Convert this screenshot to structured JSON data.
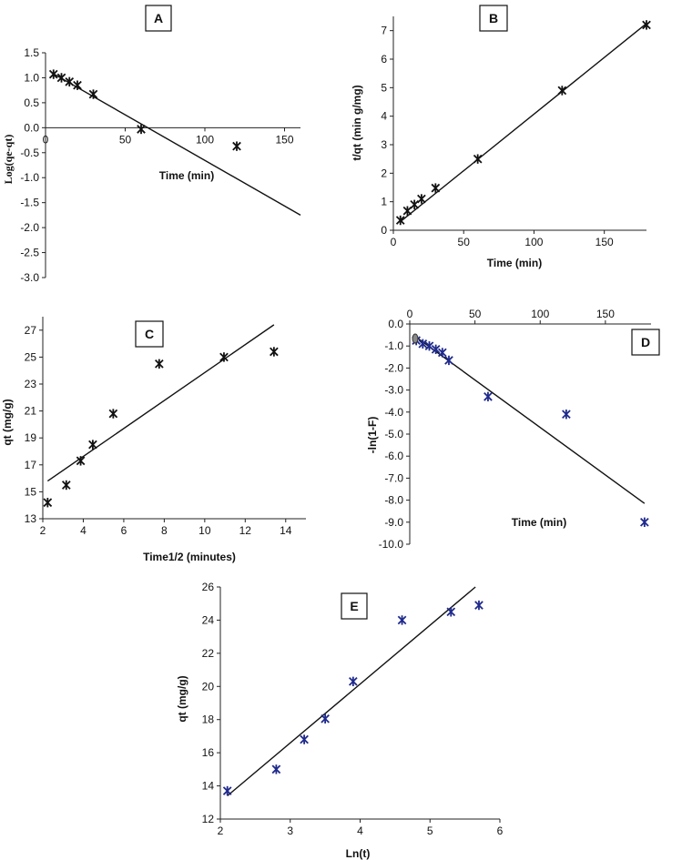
{
  "chart_data": [
    {
      "panel": "A",
      "type": "scatter",
      "xlabel": "Time (min)",
      "ylabel": "Log(qe-qt)",
      "xlim": [
        0,
        160
      ],
      "ylim": [
        -3.0,
        1.5
      ],
      "xticks": [
        "0",
        "50",
        "100",
        "150"
      ],
      "yticks": [
        "1.5",
        "1.0",
        "0.5",
        "0.0",
        "-0.5",
        "-1.0",
        "-1.5",
        "-2.0",
        "-2.5",
        "-3.0"
      ],
      "points": [
        [
          5,
          1.07
        ],
        [
          10,
          1.0
        ],
        [
          15,
          0.92
        ],
        [
          20,
          0.85
        ],
        [
          30,
          0.67
        ],
        [
          60,
          -0.03
        ],
        [
          120,
          -0.37
        ]
      ],
      "fit_line": [
        [
          5,
          1.08
        ],
        [
          160,
          -1.75
        ]
      ],
      "marker_color": "#111111"
    },
    {
      "panel": "B",
      "type": "scatter",
      "xlabel": "Time (min)",
      "ylabel": "t/qt (min g/mg)",
      "xlim": [
        0,
        180
      ],
      "ylim": [
        0,
        7.5
      ],
      "xticks": [
        "0",
        "50",
        "100",
        "150"
      ],
      "yticks": [
        "0",
        "1",
        "2",
        "3",
        "4",
        "5",
        "6",
        "7"
      ],
      "points": [
        [
          5,
          0.35
        ],
        [
          10,
          0.68
        ],
        [
          15,
          0.9
        ],
        [
          20,
          1.1
        ],
        [
          30,
          1.48
        ],
        [
          60,
          2.5
        ],
        [
          120,
          4.9
        ],
        [
          180,
          7.2
        ]
      ],
      "fit_line": [
        [
          5,
          0.3
        ],
        [
          180,
          7.25
        ]
      ],
      "marker_color": "#111111"
    },
    {
      "panel": "C",
      "type": "scatter",
      "xlabel": "Time1/2 (minutes)",
      "ylabel": "qt (mg/g)",
      "xlim": [
        2,
        15
      ],
      "ylim": [
        13,
        28
      ],
      "xticks": [
        "2",
        "4",
        "6",
        "8",
        "10",
        "12",
        "14"
      ],
      "yticks": [
        "13",
        "15",
        "17",
        "19",
        "21",
        "23",
        "25",
        "27"
      ],
      "points": [
        [
          2.24,
          14.2
        ],
        [
          3.16,
          15.5
        ],
        [
          3.87,
          17.3
        ],
        [
          4.47,
          18.5
        ],
        [
          5.48,
          20.8
        ],
        [
          7.75,
          24.5
        ],
        [
          10.95,
          25.0
        ],
        [
          13.42,
          25.4
        ]
      ],
      "fit_line": [
        [
          2.24,
          15.8
        ],
        [
          13.42,
          27.4
        ]
      ],
      "marker_color": "#111111"
    },
    {
      "panel": "D",
      "type": "scatter",
      "xlabel": "Time (min)",
      "ylabel": "-ln(1-F)",
      "xlim": [
        0,
        185
      ],
      "ylim": [
        -10.0,
        0.0
      ],
      "xticks": [
        "0",
        "50",
        "100",
        "150"
      ],
      "yticks": [
        "0.0",
        "-1.0",
        "-2.0",
        "-3.0",
        "-4.0",
        "-5.0",
        "-6.0",
        "-7.0",
        "-8.0",
        "-9.0",
        "-10.0"
      ],
      "points": [
        [
          5,
          -0.75
        ],
        [
          10,
          -0.9
        ],
        [
          15,
          -1.0
        ],
        [
          20,
          -1.15
        ],
        [
          25,
          -1.3
        ],
        [
          30,
          -1.65
        ],
        [
          60,
          -3.3
        ],
        [
          120,
          -4.1
        ],
        [
          180,
          -9.0
        ]
      ],
      "fit_line": [
        [
          5,
          -0.6
        ],
        [
          180,
          -8.15
        ]
      ],
      "marker_color": "#1f2a8c"
    },
    {
      "panel": "E",
      "type": "scatter",
      "xlabel": "Ln(t)",
      "ylabel": "qt (mg/g)",
      "xlim": [
        2,
        6
      ],
      "ylim": [
        12,
        26
      ],
      "xticks": [
        "2",
        "3",
        "4",
        "5",
        "6"
      ],
      "yticks": [
        "12",
        "14",
        "16",
        "18",
        "20",
        "22",
        "24",
        "26"
      ],
      "points": [
        [
          2.1,
          13.7
        ],
        [
          2.8,
          15.0
        ],
        [
          3.2,
          16.8
        ],
        [
          3.5,
          18.05
        ],
        [
          3.9,
          20.3
        ],
        [
          4.6,
          24.0
        ],
        [
          5.3,
          24.5
        ],
        [
          5.7,
          24.9
        ]
      ],
      "fit_line": [
        [
          2.1,
          13.4
        ],
        [
          5.65,
          26.0
        ]
      ],
      "marker_color": "#1f2a8c"
    }
  ]
}
